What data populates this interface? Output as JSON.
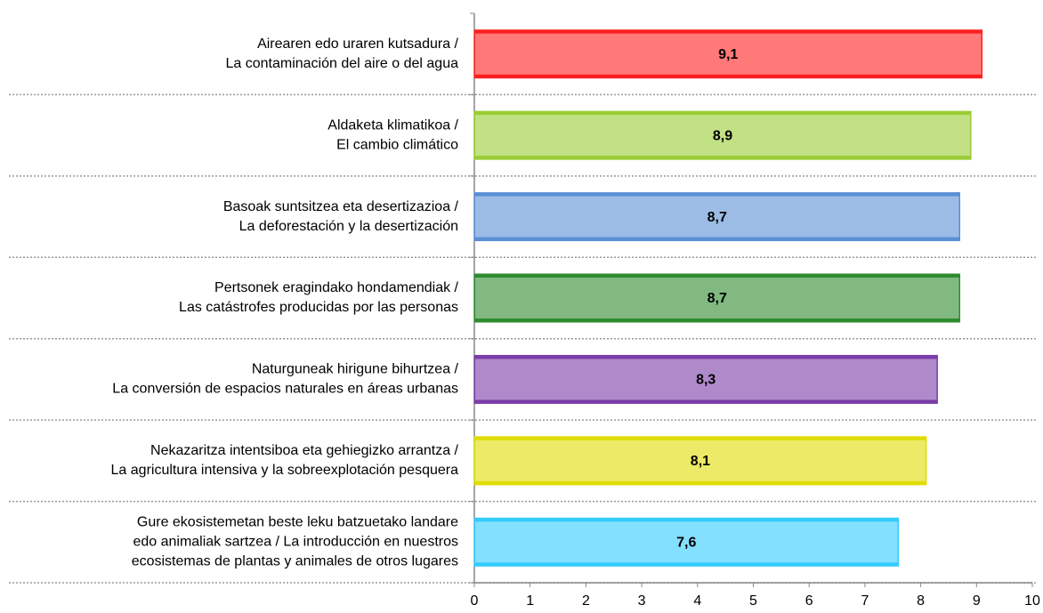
{
  "chart_data": {
    "type": "hbar",
    "categories": [
      [
        "Airearen edo uraren kutsadura /",
        "La contaminación del aire o del agua"
      ],
      [
        "Aldaketa klimatikoa /",
        "El cambio climático"
      ],
      [
        "Basoak suntsitzea eta desertizazioa /",
        "La deforestación y la desertización"
      ],
      [
        "Pertsonek eragindako hondamendiak /",
        "Las catástrofes producidas por las personas"
      ],
      [
        "Naturguneak hirigune bihurtzea /",
        "La conversión de espacios naturales en áreas urbanas"
      ],
      [
        "Nekazaritza intentsiboa eta  gehiegizko arrantza /",
        "La agricultura intensiva y la sobreexplotación pesquera"
      ],
      [
        "Gure ekosistemetan beste leku batzuetako landare",
        "edo animaliak sartzea / La introducción en nuestros",
        "ecosistemas de plantas y animales de otros lugares"
      ]
    ],
    "values": [
      9.1,
      8.9,
      8.7,
      8.7,
      8.3,
      8.1,
      7.6
    ],
    "value_labels": [
      "9,1",
      "8,9",
      "8,7",
      "8,7",
      "8,3",
      "8,1",
      "7,6"
    ],
    "colors": [
      "#ff2020",
      "#99cc33",
      "#5b8fd6",
      "#2e8b2e",
      "#7a3ca8",
      "#e0dc00",
      "#33ccff"
    ],
    "xlim": [
      0,
      10
    ],
    "xticks": [
      0,
      1,
      2,
      3,
      4,
      5,
      6,
      7,
      8,
      9,
      10
    ]
  }
}
